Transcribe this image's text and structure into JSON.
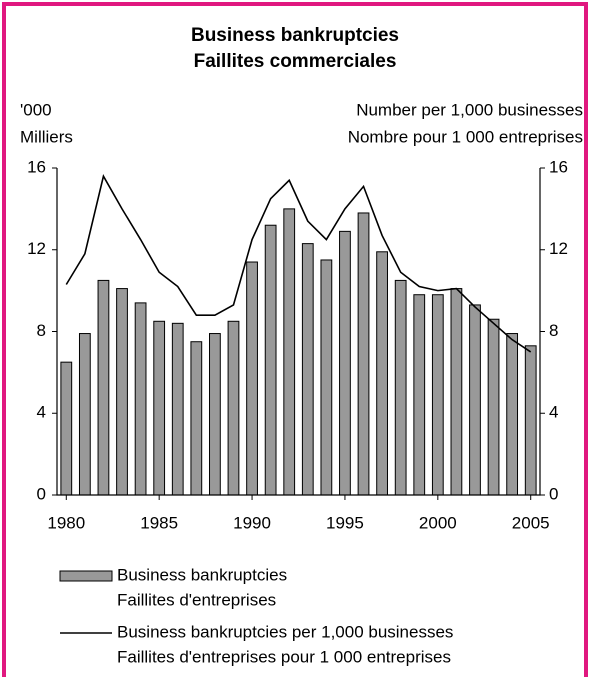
{
  "chart_data": {
    "type": "bar_line",
    "title": "Business bankruptcies",
    "subtitle": "Faillites commerciales",
    "y_label": [
      "'000",
      "Milliers"
    ],
    "y2_label": [
      "Number per 1,000 businesses",
      "Nombre pour 1 000 entreprises"
    ],
    "x": [
      1980,
      1981,
      1982,
      1983,
      1984,
      1985,
      1986,
      1987,
      1988,
      1989,
      1990,
      1991,
      1992,
      1993,
      1994,
      1995,
      1996,
      1997,
      1998,
      1999,
      2000,
      2001,
      2002,
      2003,
      2004,
      2005
    ],
    "series": [
      {
        "name": "Business bankruptcies",
        "name_fr": "Faillites d'entreprises",
        "type": "bar",
        "color": "#999999",
        "values": [
          6.5,
          7.9,
          10.5,
          10.1,
          9.4,
          8.5,
          8.4,
          7.5,
          7.9,
          8.5,
          11.4,
          13.2,
          14.0,
          12.3,
          11.5,
          12.9,
          13.8,
          11.9,
          10.5,
          9.8,
          9.8,
          10.1,
          9.3,
          8.6,
          7.9,
          7.3
        ]
      },
      {
        "name": "Business bankruptcies per 1,000 businesses",
        "name_fr": "Faillites d'entreprises pour 1 000 entreprises",
        "type": "line",
        "color": "#000000",
        "axis": "y2",
        "values": [
          10.3,
          11.8,
          15.6,
          14.0,
          12.5,
          10.9,
          10.2,
          8.8,
          8.8,
          9.3,
          12.5,
          14.5,
          15.4,
          13.4,
          12.5,
          14.0,
          15.1,
          12.7,
          10.9,
          10.2,
          10.0,
          10.1,
          9.2,
          8.4,
          7.6,
          7.0
        ]
      }
    ],
    "xlim": [
      1979.5,
      2005.5
    ],
    "xticks": [
      1980,
      1985,
      1990,
      1995,
      2000,
      2005
    ],
    "ylim": [
      0,
      16
    ],
    "yticks": [
      0,
      4,
      8,
      12,
      16
    ],
    "y2lim": [
      0,
      16
    ],
    "y2ticks": [
      0,
      4,
      8,
      12,
      16
    ],
    "grid": false
  }
}
